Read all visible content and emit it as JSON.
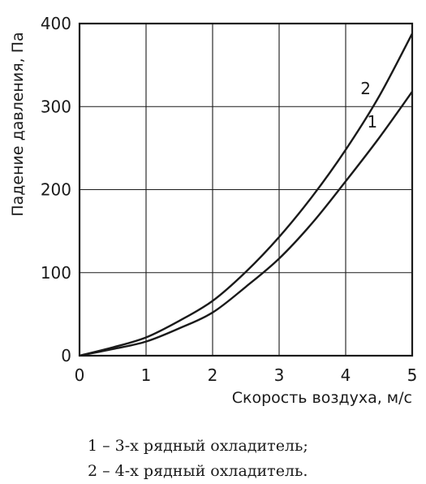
{
  "chart_data": {
    "type": "line",
    "xlabel": "Скорость воздуха, м/с",
    "ylabel": "Падение давления, Па",
    "xlim": [
      0,
      5
    ],
    "ylim": [
      0,
      400
    ],
    "x_ticks": [
      "0",
      "1",
      "2",
      "3",
      "4",
      "5"
    ],
    "y_ticks": [
      "0",
      "100",
      "200",
      "300",
      "400"
    ],
    "grid": true,
    "series": [
      {
        "name": "1",
        "x": [
          0,
          0.5,
          1,
          1.5,
          2,
          2.5,
          3,
          3.5,
          4,
          4.5,
          5
        ],
        "y": [
          0,
          8,
          17,
          33,
          52,
          83,
          117,
          160,
          210,
          262,
          318
        ],
        "label_pos": [
          4.4,
          275
        ]
      },
      {
        "name": "2",
        "x": [
          0,
          0.5,
          1,
          1.5,
          2,
          2.5,
          3,
          3.5,
          4,
          4.5,
          5
        ],
        "y": [
          0,
          10,
          22,
          42,
          66,
          101,
          143,
          192,
          248,
          312,
          388
        ],
        "label_pos": [
          4.3,
          315
        ]
      }
    ],
    "line_color": "#1a1a1a",
    "grid_color": "#1a1a1a"
  },
  "legend": {
    "line1": "1 – 3-х рядный охладитель;",
    "line2": "2 – 4-х рядный охладитель."
  }
}
